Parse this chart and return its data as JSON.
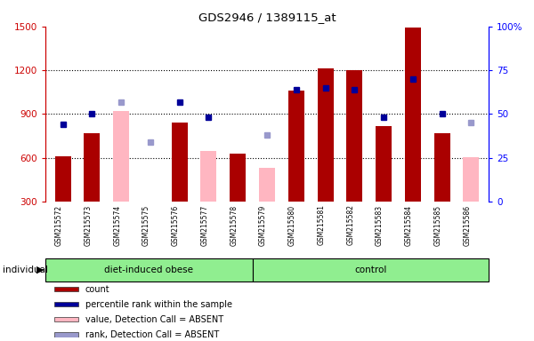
{
  "title": "GDS2946 / 1389115_at",
  "samples": [
    "GSM215572",
    "GSM215573",
    "GSM215574",
    "GSM215575",
    "GSM215576",
    "GSM215577",
    "GSM215578",
    "GSM215579",
    "GSM215580",
    "GSM215581",
    "GSM215582",
    "GSM215583",
    "GSM215584",
    "GSM215585",
    "GSM215586"
  ],
  "count_values": [
    610,
    770,
    null,
    null,
    840,
    null,
    630,
    null,
    1060,
    1210,
    1200,
    820,
    1490,
    770,
    null
  ],
  "count_absent": [
    null,
    null,
    920,
    295,
    null,
    645,
    null,
    530,
    null,
    null,
    null,
    null,
    null,
    null,
    605
  ],
  "percentile_values": [
    44,
    50,
    null,
    null,
    57,
    48,
    null,
    null,
    64,
    65,
    64,
    48,
    70,
    50,
    null
  ],
  "percentile_absent": [
    null,
    null,
    57,
    34,
    null,
    null,
    null,
    38,
    null,
    null,
    null,
    null,
    null,
    null,
    45
  ],
  "bar_color_present": "#AA0000",
  "bar_color_absent": "#FFB6C1",
  "dot_color_present": "#000099",
  "dot_color_absent": "#9999CC",
  "ylim_left": [
    300,
    1500
  ],
  "ylim_right": [
    0,
    100
  ],
  "yticks_left": [
    300,
    600,
    900,
    1200,
    1500
  ],
  "yticks_right": [
    0,
    25,
    50,
    75,
    100
  ],
  "plot_bg": "#FFFFFF",
  "sample_label_bg": "#D3D3D3",
  "group_color": "#90EE90",
  "bar_width": 0.55,
  "legend_items": [
    {
      "label": "count",
      "color": "#AA0000"
    },
    {
      "label": "percentile rank within the sample",
      "color": "#000099"
    },
    {
      "label": "value, Detection Call = ABSENT",
      "color": "#FFB6C1"
    },
    {
      "label": "rank, Detection Call = ABSENT",
      "color": "#9999CC"
    }
  ]
}
